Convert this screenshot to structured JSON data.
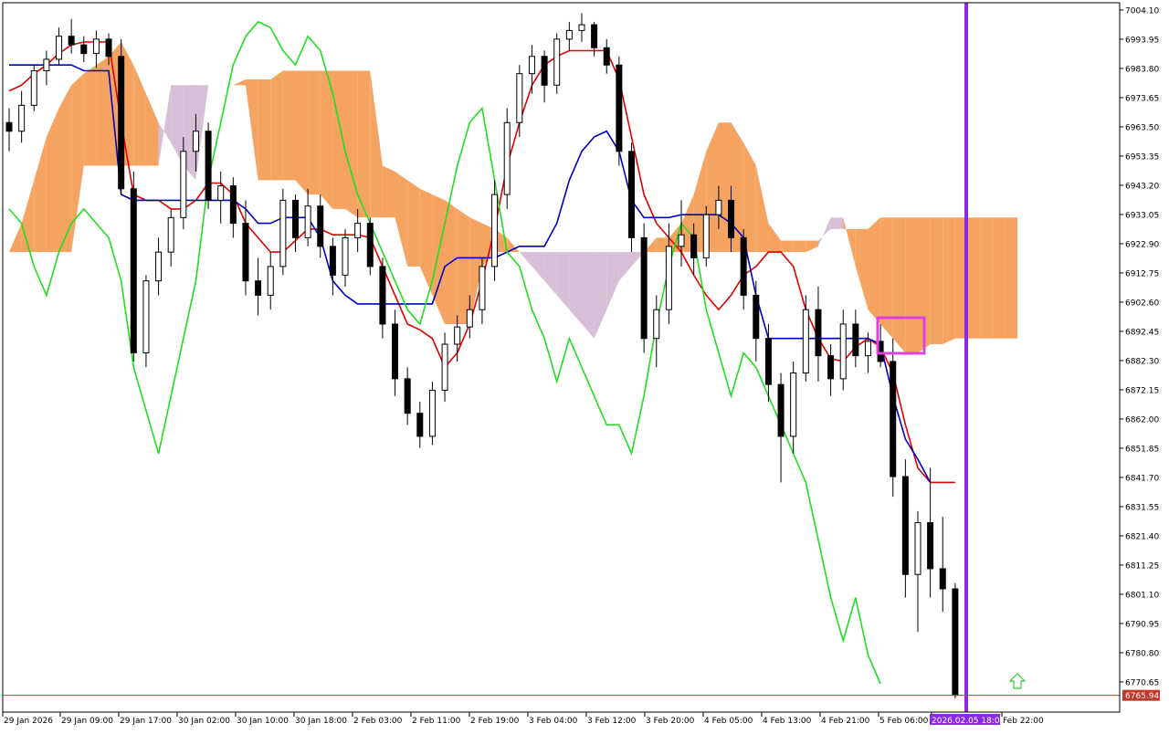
{
  "chart_data": {
    "type": "candlestick",
    "title": "",
    "xlabel": "",
    "ylabel": "",
    "ylim": [
      6760.1,
      7007.1
    ],
    "grid": false,
    "colors": {
      "bull_body": "#ffffff",
      "bear_body": "#000000",
      "wick": "#000000",
      "tenkan": "#e00000",
      "kijun": "#0000c0",
      "chikou": "#22dd22",
      "kumo_bull": "#f4a460",
      "kumo_bear": "#d8bfd8",
      "vline": "#8a2be2",
      "highlight_box": "#e040e0",
      "price_line": "#c0392b",
      "arrow": "#33cc33"
    },
    "y_ticks": [
      "7004.10",
      "6993.95",
      "6983.80",
      "6973.65",
      "6963.50",
      "6953.35",
      "6943.20",
      "6933.05",
      "6922.90",
      "6912.75",
      "6902.60",
      "6892.45",
      "6882.30",
      "6872.15",
      "6862.00",
      "6851.85",
      "6841.70",
      "6831.55",
      "6821.40",
      "6811.25",
      "6801.10",
      "6790.95",
      "6780.80",
      "6770.65"
    ],
    "x_ticks": [
      "29 Jan 2026",
      "29 Jan 09:00",
      "29 Jan 17:00",
      "30 Jan 02:00",
      "30 Jan 10:00",
      "30 Jan 18:00",
      "2 Feb 03:00",
      "2 Feb 11:00",
      "2 Feb 19:00",
      "3 Feb 04:00",
      "3 Feb 12:00",
      "3 Feb 20:00",
      "4 Feb 05:00",
      "4 Feb 13:00",
      "4 Feb 21:00",
      "5 Feb 06:00",
      "2026.02.05 18:00",
      "Feb 22:00"
    ],
    "current_price": "6765.94",
    "vline_label": "2026.02.05 18:00",
    "candles": [
      [
        6965,
        6970,
        6955,
        6962
      ],
      [
        6962,
        6976,
        6958,
        6971
      ],
      [
        6971,
        6985,
        6969,
        6983
      ],
      [
        6983,
        6990,
        6978,
        6987
      ],
      [
        6987,
        6998,
        6985,
        6995
      ],
      [
        6995,
        7001,
        6989,
        6992
      ],
      [
        6992,
        6995,
        6986,
        6989
      ],
      [
        6989,
        6997,
        6984,
        6994
      ],
      [
        6994,
        6996,
        6985,
        6988
      ],
      [
        6988,
        6994,
        6940,
        6942
      ],
      [
        6942,
        6948,
        6882,
        6885
      ],
      [
        6885,
        6912,
        6880,
        6910
      ],
      [
        6910,
        6925,
        6905,
        6920
      ],
      [
        6920,
        6935,
        6915,
        6932
      ],
      [
        6932,
        6960,
        6928,
        6955
      ],
      [
        6955,
        6968,
        6948,
        6962
      ],
      [
        6962,
        6965,
        6935,
        6938
      ],
      [
        6938,
        6948,
        6930,
        6943
      ],
      [
        6943,
        6946,
        6925,
        6930
      ],
      [
        6930,
        6938,
        6905,
        6910
      ],
      [
        6910,
        6918,
        6898,
        6905
      ],
      [
        6905,
        6920,
        6900,
        6915
      ],
      [
        6915,
        6942,
        6912,
        6938
      ],
      [
        6938,
        6940,
        6920,
        6925
      ],
      [
        6925,
        6942,
        6922,
        6936
      ],
      [
        6936,
        6940,
        6918,
        6922
      ],
      [
        6922,
        6925,
        6905,
        6912
      ],
      [
        6912,
        6928,
        6908,
        6925
      ],
      [
        6925,
        6935,
        6920,
        6930
      ],
      [
        6930,
        6932,
        6912,
        6915
      ],
      [
        6915,
        6918,
        6890,
        6895
      ],
      [
        6895,
        6900,
        6870,
        6876
      ],
      [
        6876,
        6880,
        6860,
        6864
      ],
      [
        6864,
        6868,
        6852,
        6856
      ],
      [
        6856,
        6875,
        6853,
        6872
      ],
      [
        6872,
        6892,
        6868,
        6888
      ],
      [
        6888,
        6898,
        6882,
        6894
      ],
      [
        6894,
        6905,
        6890,
        6900
      ],
      [
        6900,
        6918,
        6895,
        6915
      ],
      [
        6915,
        6945,
        6910,
        6940
      ],
      [
        6940,
        6970,
        6935,
        6965
      ],
      [
        6965,
        6985,
        6960,
        6982
      ],
      [
        6982,
        6992,
        6975,
        6988
      ],
      [
        6988,
        6990,
        6972,
        6978
      ],
      [
        6978,
        6996,
        6975,
        6994
      ],
      [
        6994,
        7000,
        6990,
        6997
      ],
      [
        6997,
        7003,
        6993,
        6999
      ],
      [
        6999,
        7000,
        6988,
        6991
      ],
      [
        6991,
        6994,
        6982,
        6985
      ],
      [
        6985,
        6988,
        6950,
        6955
      ],
      [
        6955,
        6958,
        6920,
        6925
      ],
      [
        6925,
        6930,
        6885,
        6890
      ],
      [
        6890,
        6905,
        6880,
        6900
      ],
      [
        6900,
        6930,
        6895,
        6922
      ],
      [
        6922,
        6938,
        6915,
        6926
      ],
      [
        6926,
        6930,
        6912,
        6918
      ],
      [
        6918,
        6936,
        6915,
        6933
      ],
      [
        6933,
        6943,
        6928,
        6938
      ],
      [
        6938,
        6943,
        6920,
        6925
      ],
      [
        6925,
        6928,
        6900,
        6905
      ],
      [
        6905,
        6910,
        6882,
        6890
      ],
      [
        6890,
        6895,
        6868,
        6874
      ],
      [
        6874,
        6878,
        6840,
        6856
      ],
      [
        6856,
        6882,
        6850,
        6878
      ],
      [
        6878,
        6905,
        6875,
        6900
      ],
      [
        6900,
        6908,
        6875,
        6884
      ],
      [
        6884,
        6888,
        6870,
        6876
      ],
      [
        6876,
        6900,
        6872,
        6895
      ],
      [
        6895,
        6900,
        6880,
        6884
      ],
      [
        6884,
        6892,
        6878,
        6889
      ],
      [
        6889,
        6895,
        6880,
        6882
      ],
      [
        6882,
        6890,
        6835,
        6842
      ],
      [
        6842,
        6848,
        6800,
        6808
      ],
      [
        6808,
        6830,
        6788,
        6826
      ],
      [
        6826,
        6845,
        6800,
        6810
      ],
      [
        6810,
        6828,
        6795,
        6803
      ],
      [
        6803,
        6805,
        6765,
        6766
      ]
    ],
    "series": [
      {
        "name": "",
        "role": "tenkan",
        "values": [
          6976,
          6978,
          6982,
          6985,
          6989,
          6992,
          6993,
          6993,
          6993,
          6965,
          6940,
          6938,
          6938,
          6935,
          6935,
          6938,
          6944,
          6944,
          6940,
          6930,
          6925,
          6920,
          6920,
          6924,
          6928,
          6928,
          6926,
          6926,
          6926,
          6925,
          6915,
          6905,
          6895,
          6893,
          6890,
          6880,
          6885,
          6895,
          6910,
          6928,
          6950,
          6965,
          6978,
          6985,
          6988,
          6990,
          6990,
          6990,
          6990,
          6980,
          6960,
          6940,
          6930,
          6925,
          6920,
          6912,
          6905,
          6900,
          6905,
          6912,
          6915,
          6920,
          6920,
          6915,
          6900,
          6890,
          6883,
          6882,
          6887,
          6890,
          6887,
          6878,
          6860,
          6845,
          6840,
          6840,
          6840
        ]
      },
      {
        "name": "",
        "role": "kijun",
        "values": [
          6985,
          6985,
          6985,
          6985,
          6985,
          6985,
          6983,
          6983,
          6983,
          6940,
          6938,
          6938,
          6938,
          6938,
          6938,
          6938,
          6938,
          6938,
          6938,
          6935,
          6930,
          6930,
          6932,
          6932,
          6932,
          6925,
          6910,
          6905,
          6902,
          6902,
          6902,
          6902,
          6902,
          6902,
          6902,
          6915,
          6918,
          6918,
          6918,
          6918,
          6920,
          6922,
          6922,
          6922,
          6930,
          6945,
          6955,
          6960,
          6962,
          6955,
          6938,
          6932,
          6932,
          6932,
          6933,
          6933,
          6933,
          6933,
          6930,
          6925,
          6905,
          6890,
          6890,
          6890,
          6890,
          6890,
          6890,
          6890,
          6890,
          6890,
          6888,
          6870,
          6855,
          6848,
          6840
        ]
      },
      {
        "name": "",
        "role": "chikou",
        "values": [
          6935,
          6930,
          6915,
          6905,
          6920,
          6930,
          6935,
          6930,
          6925,
          6910,
          6880,
          6865,
          6850,
          6870,
          6890,
          6910,
          6945,
          6965,
          6985,
          6995,
          7000,
          6998,
          6990,
          6985,
          6995,
          6990,
          6975,
          6955,
          6940,
          6930,
          6920,
          6910,
          6900,
          6895,
          6910,
          6930,
          6950,
          6965,
          6970,
          6945,
          6920,
          6915,
          6900,
          6890,
          6875,
          6890,
          6880,
          6870,
          6860,
          6860,
          6850,
          6870,
          6895,
          6915,
          6930,
          6925,
          6900,
          6885,
          6870,
          6885,
          6880,
          6870,
          6860,
          6850,
          6840,
          6820,
          6800,
          6785,
          6800,
          6780,
          6770
        ]
      },
      {
        "name": "",
        "role": "senkou_a",
        "values": [
          6920,
          6930,
          6945,
          6960,
          6970,
          6978,
          6982,
          6985,
          6988,
          6993,
          6985,
          6975,
          6965,
          6958,
          6950,
          6945,
          6978,
          6978,
          6978,
          6980,
          6980,
          6980,
          6983,
          6983,
          6983,
          6983,
          6983,
          6983,
          6983,
          6983,
          6950,
          6948,
          6945,
          6942,
          6940,
          6938,
          6935,
          6932,
          6930,
          6928,
          6925,
          6920,
          6915,
          6910,
          6905,
          6900,
          6895,
          6890,
          6900,
          6910,
          6915,
          6920,
          6925,
          6925,
          6930,
          6940,
          6955,
          6965,
          6965,
          6958,
          6950,
          6930,
          6924,
          6924,
          6924,
          6924,
          6928,
          6928,
          6928,
          6928,
          6932,
          6932,
          6932,
          6932,
          6932,
          6932,
          6932,
          6932,
          6932,
          6932,
          6932,
          6932
        ]
      },
      {
        "name": "",
        "role": "senkou_b",
        "values": [
          6920,
          6920,
          6920,
          6920,
          6920,
          6920,
          6950,
          6950,
          6950,
          6950,
          6950,
          6950,
          6950,
          6978,
          6978,
          6978,
          6978,
          6978,
          6978,
          6978,
          6945,
          6945,
          6945,
          6945,
          6940,
          6940,
          6935,
          6935,
          6932,
          6932,
          6932,
          6932,
          6915,
          6915,
          6905,
          6895,
          6895,
          6895,
          6915,
          6920,
          6920,
          6920,
          6920,
          6920,
          6920,
          6920,
          6920,
          6920,
          6920,
          6920,
          6920,
          6920,
          6920,
          6920,
          6920,
          6920,
          6920,
          6920,
          6920,
          6920,
          6920,
          6920,
          6920,
          6920,
          6920,
          6922,
          6932,
          6932,
          6915,
          6900,
          6895,
          6890,
          6885,
          6885,
          6888,
          6888,
          6890,
          6890,
          6890,
          6890,
          6890,
          6890
        ]
      }
    ]
  }
}
